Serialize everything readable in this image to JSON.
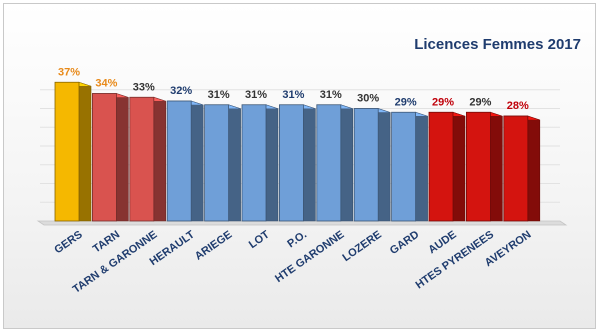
{
  "chart_data": {
    "type": "bar",
    "title": "Licences Femmes 2017",
    "categories": [
      "GERS",
      "TARN",
      "TARN & GARONNE",
      "HERAULT",
      "ARIEGE",
      "LOT",
      "P.O.",
      "HTE GARONNE",
      "LOZERE",
      "GARD",
      "AUDE",
      "HTES PYRENEES",
      "AVEYRON"
    ],
    "values": [
      37,
      34,
      33,
      32,
      31,
      31,
      31,
      31,
      30,
      29,
      29,
      29,
      28
    ],
    "data_labels": [
      "37%",
      "34%",
      "33%",
      "32%",
      "31%",
      "31%",
      "31%",
      "31%",
      "30%",
      "29%",
      "29%",
      "29%",
      "28%"
    ],
    "ylim": [
      0,
      40
    ],
    "grid": true,
    "legend": "none",
    "bar_colors": [
      "#f5b800",
      "#d9534f",
      "#d9534f",
      "#6f9fd8",
      "#6f9fd8",
      "#6f9fd8",
      "#6f9fd8",
      "#6f9fd8",
      "#6f9fd8",
      "#6f9fd8",
      "#d4140f",
      "#d4140f",
      "#d4140f"
    ],
    "label_colors": [
      "#e88a1a",
      "#e88a1a",
      "#333333",
      "#1f3c6e",
      "#333333",
      "#333333",
      "#1f3c6e",
      "#333333",
      "#333333",
      "#1f3c6e",
      "#c0000a",
      "#333333",
      "#c0000a"
    ],
    "axis_label_color": "#1f3c6e"
  }
}
